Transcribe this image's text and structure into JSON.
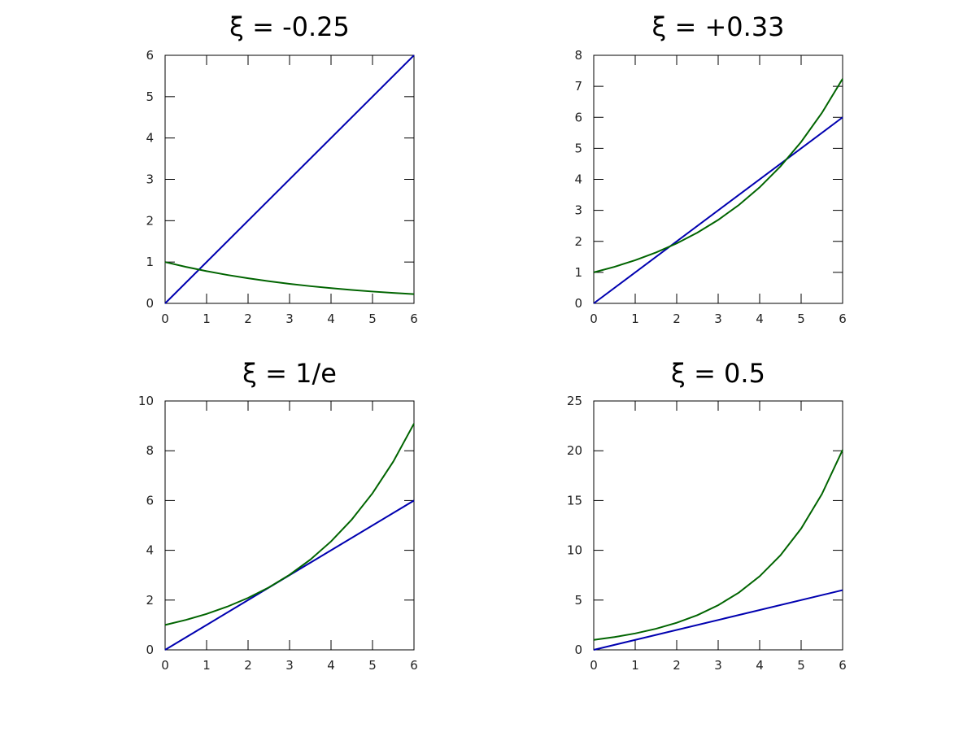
{
  "chart_data": [
    {
      "type": "line",
      "title": "ξ = -0.25",
      "xlim": [
        0,
        6
      ],
      "ylim": [
        0,
        6
      ],
      "xticks": [
        0,
        1,
        2,
        3,
        4,
        5,
        6
      ],
      "yticks": [
        0,
        1,
        2,
        3,
        4,
        5,
        6
      ],
      "grid": false,
      "series": [
        {
          "color": "#0000b0",
          "x": [
            0,
            6
          ],
          "y": [
            0,
            6
          ]
        },
        {
          "color": "#006400",
          "x": [
            0,
            0.5,
            1,
            1.5,
            2,
            2.5,
            3,
            3.5,
            4,
            4.5,
            5,
            5.5,
            6
          ],
          "y": [
            1,
            0.8825,
            0.7788,
            0.6873,
            0.6065,
            0.5353,
            0.4724,
            0.4169,
            0.3679,
            0.3247,
            0.2865,
            0.2528,
            0.2231
          ]
        }
      ]
    },
    {
      "type": "line",
      "title": "ξ = +0.33",
      "xlim": [
        0,
        6
      ],
      "ylim": [
        0,
        8
      ],
      "xticks": [
        0,
        1,
        2,
        3,
        4,
        5,
        6
      ],
      "yticks": [
        0,
        1,
        2,
        3,
        4,
        5,
        6,
        7,
        8
      ],
      "grid": false,
      "series": [
        {
          "color": "#0000b0",
          "x": [
            0,
            6
          ],
          "y": [
            0,
            6
          ]
        },
        {
          "color": "#006400",
          "x": [
            0,
            0.5,
            1,
            1.5,
            2,
            2.5,
            3,
            3.5,
            4,
            4.5,
            5,
            5.5,
            6
          ],
          "y": [
            1,
            1.1796,
            1.391,
            1.6405,
            1.9348,
            2.2819,
            2.6912,
            3.1739,
            3.7434,
            4.4149,
            5.207,
            6.1411,
            7.2427
          ]
        }
      ]
    },
    {
      "type": "line",
      "title": "ξ = 1/e",
      "xlim": [
        0,
        6
      ],
      "ylim": [
        0,
        10
      ],
      "xticks": [
        0,
        1,
        2,
        3,
        4,
        5,
        6
      ],
      "yticks": [
        0,
        2,
        4,
        6,
        8,
        10
      ],
      "grid": false,
      "series": [
        {
          "color": "#0000b0",
          "x": [
            0,
            6
          ],
          "y": [
            0,
            6
          ]
        },
        {
          "color": "#006400",
          "x": [
            0,
            0.5,
            1,
            1.5,
            2,
            2.5,
            3,
            3.5,
            4,
            4.5,
            5,
            5.5,
            6
          ],
          "y": [
            1,
            1.2019,
            1.4447,
            1.7364,
            2.0871,
            2.5085,
            3.0151,
            3.624,
            4.3559,
            5.2355,
            6.2928,
            7.5636,
            9.0909
          ]
        }
      ]
    },
    {
      "type": "line",
      "title": "ξ = 0.5",
      "xlim": [
        0,
        6
      ],
      "ylim": [
        0,
        25
      ],
      "xticks": [
        0,
        1,
        2,
        3,
        4,
        5,
        6
      ],
      "yticks": [
        0,
        5,
        10,
        15,
        20,
        25
      ],
      "grid": false,
      "series": [
        {
          "color": "#0000b0",
          "x": [
            0,
            6
          ],
          "y": [
            0,
            6
          ]
        },
        {
          "color": "#006400",
          "x": [
            0,
            0.5,
            1,
            1.5,
            2,
            2.5,
            3,
            3.5,
            4,
            4.5,
            5,
            5.5,
            6
          ],
          "y": [
            1,
            1.284,
            1.6487,
            2.117,
            2.7183,
            3.4903,
            4.4817,
            5.7546,
            7.3891,
            9.4877,
            12.1825,
            15.6426,
            20.0855
          ]
        }
      ]
    }
  ]
}
